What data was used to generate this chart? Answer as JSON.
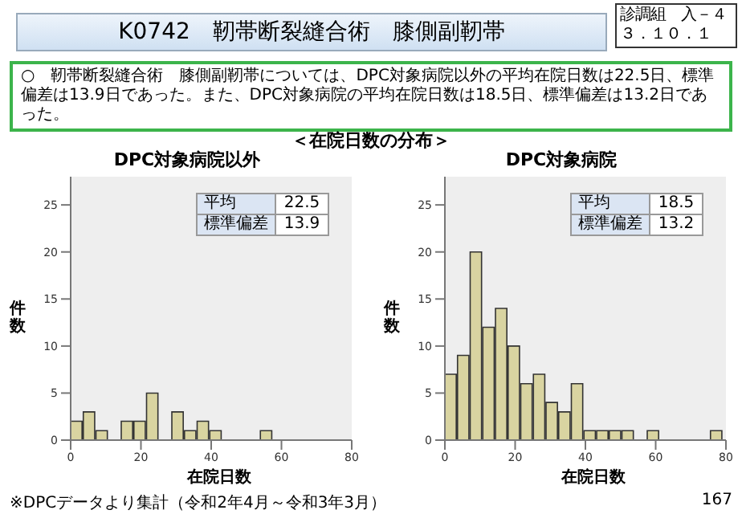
{
  "chart_data": [
    {
      "type": "histogram",
      "title": "DPC対象病院以外",
      "xlabel": "在院日数",
      "ylabel": "件数",
      "color": "#d9d4a1",
      "bins": [
        0,
        3.6,
        7.2,
        10.8,
        14.4,
        18,
        21.6,
        25.2,
        28.8,
        32.4,
        36,
        39.6,
        43.2,
        46.8,
        50.4,
        54,
        57.6,
        61.2,
        64.8,
        68.4,
        72,
        75.6,
        79.2
      ],
      "values": [
        2,
        3,
        1,
        0,
        2,
        2,
        5,
        0,
        3,
        1,
        2,
        1,
        0,
        0,
        0,
        1,
        0,
        0,
        0,
        0,
        0,
        0
      ],
      "xlim": [
        0,
        80
      ],
      "xticks": [
        0,
        20,
        40,
        60,
        80
      ],
      "ylim": [
        0,
        28
      ],
      "yticks": [
        0,
        5,
        10,
        15,
        20,
        25
      ],
      "grid": false,
      "legend": false,
      "annotations": [
        "平均",
        "22.5",
        "標準偏差",
        "13.9",
        "K0742　靭帯断裂縫合術　膝側副靭帯",
        "診調組　入－４",
        "３．１０．１",
        "○　靭帯断裂縫合術　膝側副靭帯については、DPC対象病院以外の平均在院日数は22.5日、標準偏差は13.9日であった。また、DPC対象病院の平均在院日数は18.5日、標準偏差は13.2日であった。",
        "＜在院日数の分布＞",
        "※DPCデータより集計（令和2年4月～令和3年3月）",
        "167"
      ]
    },
    {
      "type": "histogram",
      "title": "DPC対象病院",
      "xlabel": "在院日数",
      "ylabel": "件数",
      "color": "#d9d4a1",
      "bins": [
        0,
        3.6,
        7.2,
        10.8,
        14.4,
        18,
        21.6,
        25.2,
        28.8,
        32.4,
        36,
        39.6,
        43.2,
        46.8,
        50.4,
        54,
        57.6,
        61.2,
        64.8,
        68.4,
        72,
        75.6,
        79.2
      ],
      "values": [
        7,
        9,
        20,
        12,
        14,
        10,
        6,
        7,
        4,
        3,
        6,
        1,
        1,
        1,
        1,
        0,
        1,
        0,
        0,
        0,
        0,
        1
      ],
      "xlim": [
        0,
        80
      ],
      "xticks": [
        0,
        20,
        40,
        60,
        80
      ],
      "ylim": [
        0,
        28
      ],
      "yticks": [
        0,
        5,
        10,
        15,
        20,
        25
      ],
      "grid": false,
      "legend": false,
      "annotations": [
        "平均",
        "18.5",
        "標準偏差",
        "13.2"
      ]
    }
  ]
}
